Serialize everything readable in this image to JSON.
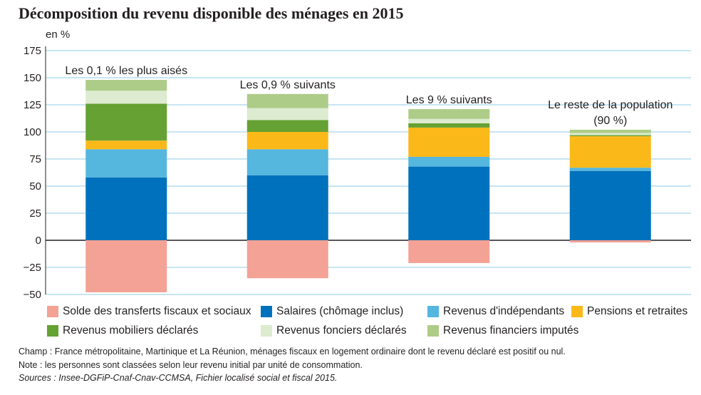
{
  "chart_data": {
    "type": "bar",
    "stacked": true,
    "title": "Décomposition du revenu disponible des ménages en 2015",
    "ylabel": "en %",
    "ylim": [
      -50,
      175
    ],
    "yticks": [
      175,
      150,
      125,
      100,
      75,
      50,
      25,
      0,
      -25,
      -50
    ],
    "ytick_labels": [
      "175",
      "150",
      "125",
      "100",
      "75",
      "50",
      "25",
      "0",
      "−25",
      "−50"
    ],
    "grid": true,
    "categories": [
      [
        "Les 0,1 % les plus aisés"
      ],
      [
        "Les 0,9 % suivants"
      ],
      [
        "Les 9 % suivants"
      ],
      [
        "Le reste de la population",
        "(90 %)"
      ]
    ],
    "series": [
      {
        "name": "Solde des transferts fiscaux et sociaux",
        "color": "#f4a196",
        "values": [
          -48,
          -35,
          -21,
          -2
        ]
      },
      {
        "name": "Salaires (chômage inclus)",
        "color": "#0071bc",
        "values": [
          58,
          60,
          68,
          64
        ]
      },
      {
        "name": "Revenus d'indépendants",
        "color": "#55b6de",
        "values": [
          26,
          24,
          9,
          3
        ]
      },
      {
        "name": "Pensions et retraites",
        "color": "#fbb819",
        "values": [
          8,
          16,
          27,
          29
        ]
      },
      {
        "name": "Revenus mobiliers déclarés",
        "color": "#65a133",
        "values": [
          34,
          11,
          4,
          1
        ]
      },
      {
        "name": "Revenus fonciers déclarés",
        "color": "#ddebd0",
        "values": [
          12,
          11,
          4,
          2
        ]
      },
      {
        "name": "Revenus financiers imputés",
        "color": "#adcc88",
        "values": [
          10,
          13,
          9,
          3
        ]
      }
    ],
    "legend_rows": [
      [
        0,
        1,
        2,
        3
      ],
      [
        4,
        5,
        6
      ]
    ]
  },
  "footer": {
    "champ": "Champ : France métropolitaine, Martinique et La Réunion, ménages fiscaux en logement ordinaire dont le revenu déclaré est positif ou nul.",
    "note": "Note : les personnes sont classées selon leur revenu initial par unité de consommation.",
    "sources": "Sources : Insee-DGFiP-Cnaf-Cnav-CCMSA, Fichier localisé social et fiscal 2015."
  }
}
